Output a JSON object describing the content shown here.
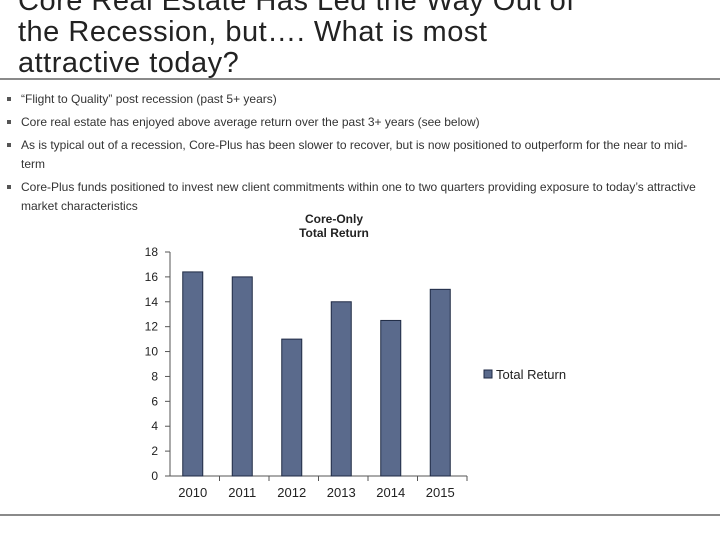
{
  "slide": {
    "title_lines": [
      "Core Real Estate Has Led the Way Out of",
      "the Recession, but…. What is most",
      "attractive today?"
    ],
    "bullets": [
      "“Flight to Quality” post recession (past 5+ years)",
      "Core real estate has enjoyed above average return over the past 3+ years (see below)",
      "As is typical out of a recession, Core-Plus has been slower to recover, but is now positioned to outperform for the near to mid-term",
      "Core-Plus funds positioned to invest new client commitments within one to two quarters providing exposure to today’s attractive market characteristics"
    ]
  },
  "chart_data": {
    "type": "bar",
    "title_lines": [
      "Core-Only",
      "Total Return"
    ],
    "categories": [
      "2010",
      "2011",
      "2012",
      "2013",
      "2014",
      "2015"
    ],
    "series": [
      {
        "name": "Total Return",
        "values": [
          16.4,
          16.0,
          11.0,
          14.0,
          12.5,
          15.0
        ],
        "color": "#5a6a8c"
      }
    ],
    "xlabel": "",
    "ylabel": "",
    "ylim": [
      0,
      18
    ],
    "yticks": [
      0,
      2,
      4,
      6,
      8,
      10,
      12,
      14,
      16,
      18
    ],
    "grid": false,
    "legend": "right"
  }
}
